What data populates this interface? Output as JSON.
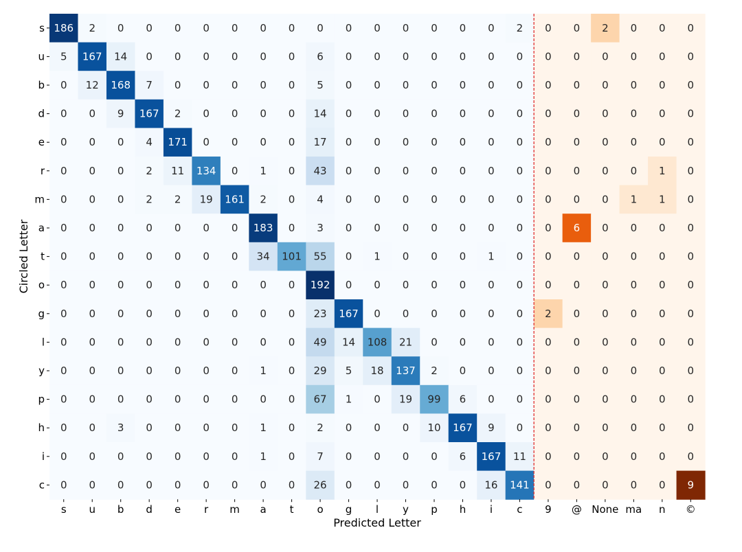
{
  "chart_data": {
    "type": "heatmap",
    "title": "",
    "xlabel": "Predicted Letter",
    "ylabel": "Circled Letter",
    "rows": [
      "s",
      "u",
      "b",
      "d",
      "e",
      "r",
      "m",
      "a",
      "t",
      "o",
      "g",
      "l",
      "y",
      "p",
      "h",
      "i",
      "c"
    ],
    "columns": [
      "s",
      "u",
      "b",
      "d",
      "e",
      "r",
      "m",
      "a",
      "t",
      "o",
      "g",
      "l",
      "y",
      "p",
      "h",
      "i",
      "c",
      "9",
      "@",
      "None",
      "ma",
      "n",
      "©"
    ],
    "values": [
      [
        186,
        2,
        0,
        0,
        0,
        0,
        0,
        0,
        0,
        0,
        0,
        0,
        0,
        0,
        0,
        0,
        2,
        0,
        0,
        2,
        0,
        0,
        0
      ],
      [
        5,
        167,
        14,
        0,
        0,
        0,
        0,
        0,
        0,
        6,
        0,
        0,
        0,
        0,
        0,
        0,
        0,
        0,
        0,
        0,
        0,
        0,
        0
      ],
      [
        0,
        12,
        168,
        7,
        0,
        0,
        0,
        0,
        0,
        5,
        0,
        0,
        0,
        0,
        0,
        0,
        0,
        0,
        0,
        0,
        0,
        0,
        0
      ],
      [
        0,
        0,
        9,
        167,
        2,
        0,
        0,
        0,
        0,
        14,
        0,
        0,
        0,
        0,
        0,
        0,
        0,
        0,
        0,
        0,
        0,
        0,
        0
      ],
      [
        0,
        0,
        0,
        4,
        171,
        0,
        0,
        0,
        0,
        17,
        0,
        0,
        0,
        0,
        0,
        0,
        0,
        0,
        0,
        0,
        0,
        0,
        0
      ],
      [
        0,
        0,
        0,
        2,
        11,
        134,
        0,
        1,
        0,
        43,
        0,
        0,
        0,
        0,
        0,
        0,
        0,
        0,
        0,
        0,
        0,
        1,
        0
      ],
      [
        0,
        0,
        0,
        2,
        2,
        19,
        161,
        2,
        0,
        4,
        0,
        0,
        0,
        0,
        0,
        0,
        0,
        0,
        0,
        0,
        1,
        1,
        0
      ],
      [
        0,
        0,
        0,
        0,
        0,
        0,
        0,
        183,
        0,
        3,
        0,
        0,
        0,
        0,
        0,
        0,
        0,
        0,
        6,
        0,
        0,
        0,
        0
      ],
      [
        0,
        0,
        0,
        0,
        0,
        0,
        0,
        34,
        101,
        55,
        0,
        1,
        0,
        0,
        0,
        1,
        0,
        0,
        0,
        0,
        0,
        0,
        0
      ],
      [
        0,
        0,
        0,
        0,
        0,
        0,
        0,
        0,
        0,
        192,
        0,
        0,
        0,
        0,
        0,
        0,
        0,
        0,
        0,
        0,
        0,
        0,
        0
      ],
      [
        0,
        0,
        0,
        0,
        0,
        0,
        0,
        0,
        0,
        23,
        167,
        0,
        0,
        0,
        0,
        0,
        0,
        2,
        0,
        0,
        0,
        0,
        0
      ],
      [
        0,
        0,
        0,
        0,
        0,
        0,
        0,
        0,
        0,
        49,
        14,
        108,
        21,
        0,
        0,
        0,
        0,
        0,
        0,
        0,
        0,
        0,
        0
      ],
      [
        0,
        0,
        0,
        0,
        0,
        0,
        0,
        1,
        0,
        29,
        5,
        18,
        137,
        2,
        0,
        0,
        0,
        0,
        0,
        0,
        0,
        0,
        0
      ],
      [
        0,
        0,
        0,
        0,
        0,
        0,
        0,
        0,
        0,
        67,
        1,
        0,
        19,
        99,
        6,
        0,
        0,
        0,
        0,
        0,
        0,
        0,
        0
      ],
      [
        0,
        0,
        3,
        0,
        0,
        0,
        0,
        1,
        0,
        2,
        0,
        0,
        0,
        10,
        167,
        9,
        0,
        0,
        0,
        0,
        0,
        0,
        0
      ],
      [
        0,
        0,
        0,
        0,
        0,
        0,
        0,
        1,
        0,
        7,
        0,
        0,
        0,
        0,
        6,
        167,
        11,
        0,
        0,
        0,
        0,
        0,
        0
      ],
      [
        0,
        0,
        0,
        0,
        0,
        0,
        0,
        0,
        0,
        26,
        0,
        0,
        0,
        0,
        0,
        16,
        141,
        0,
        0,
        0,
        0,
        0,
        9
      ]
    ],
    "in_vocab_columns": 17,
    "colormaps": {
      "in_vocab": "Blues",
      "out_of_vocab": "Oranges"
    },
    "color_max": {
      "in_vocab": 192,
      "out_of_vocab": 9
    },
    "separator": {
      "after_column": 17,
      "style": "dashed",
      "color": "#e03030"
    },
    "grid": false,
    "legend": "none"
  }
}
